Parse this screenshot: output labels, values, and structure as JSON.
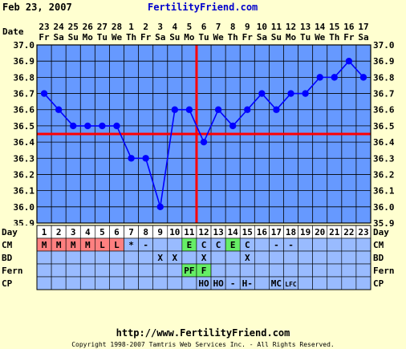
{
  "header": {
    "date": "Feb 23, 2007",
    "site": "FertilityFriend.com"
  },
  "footer": {
    "url": "http://www.FertilityFriend.com",
    "copyright": "Copyright 1998-2007 Tamtris Web Services Inc. - All Rights Reserved."
  },
  "colors": {
    "background": "#ffffd0",
    "plot_area": "#6699ff",
    "grid": "#000000",
    "line": "#0000ff",
    "coverline": "#ff0000",
    "table_bg": "#99bbff",
    "day_row_bg": "#ffffff",
    "cm_red": "#ff8080",
    "green": "#66ee66"
  },
  "chart_data": {
    "type": "line",
    "title": "",
    "xlabel": "Date",
    "ylabel": "",
    "x_dates": [
      "23",
      "24",
      "25",
      "26",
      "27",
      "28",
      "1",
      "2",
      "3",
      "4",
      "5",
      "6",
      "7",
      "8",
      "9",
      "10",
      "11",
      "12",
      "13",
      "14",
      "15",
      "16",
      "17"
    ],
    "x_weekdays": [
      "Fr",
      "Sa",
      "Su",
      "Mo",
      "Tu",
      "We",
      "Th",
      "Fr",
      "Sa",
      "Su",
      "Mo",
      "Tu",
      "We",
      "Th",
      "Fr",
      "Sa",
      "Su",
      "Mo",
      "Tu",
      "We",
      "Th",
      "Fr",
      "Sa"
    ],
    "days": [
      "1",
      "2",
      "3",
      "4",
      "5",
      "6",
      "7",
      "8",
      "9",
      "10",
      "11",
      "12",
      "13",
      "14",
      "15",
      "16",
      "17",
      "18",
      "19",
      "20",
      "21",
      "22",
      "23"
    ],
    "series": [
      {
        "values": [
          36.7,
          36.6,
          36.5,
          36.5,
          36.5,
          36.5,
          36.3,
          36.3,
          36.0,
          36.6,
          36.6,
          36.4,
          36.6,
          36.5,
          36.6,
          36.7,
          36.6,
          36.7,
          36.7,
          36.8,
          36.8,
          36.9,
          36.8
        ]
      }
    ],
    "ylim": [
      35.9,
      37.0
    ],
    "y_ticks": [
      "35.9",
      "36.0",
      "36.1",
      "36.2",
      "36.3",
      "36.4",
      "36.5",
      "36.6",
      "36.7",
      "36.8",
      "36.9",
      "37.0"
    ],
    "coverline": 36.45,
    "ovulation_day_index": 11,
    "grid": true
  },
  "rows": [
    {
      "label": "Day"
    },
    {
      "label": "CM",
      "cells": [
        "M",
        "M",
        "M",
        "M",
        "L",
        "L",
        "*",
        "-",
        "",
        "",
        "E",
        "C",
        "C",
        "E",
        "C",
        "",
        "-",
        "-",
        "",
        "",
        "",
        "",
        ""
      ],
      "colors": [
        "red",
        "red",
        "red",
        "red",
        "red",
        "red",
        "",
        "",
        "",
        "",
        "green",
        "",
        "",
        "green",
        "",
        "",
        "",
        "",
        "",
        "",
        "",
        "",
        ""
      ]
    },
    {
      "label": "BD",
      "cells": [
        "",
        "",
        "",
        "",
        "",
        "",
        "",
        "",
        "X",
        "X",
        "",
        "X",
        "",
        "",
        "X",
        "",
        "",
        "",
        "",
        "",
        "",
        "",
        ""
      ]
    },
    {
      "label": "Fern",
      "cells": [
        "",
        "",
        "",
        "",
        "",
        "",
        "",
        "",
        "",
        "",
        "PF",
        "F",
        "",
        "",
        "",
        "",
        "",
        "",
        "",
        "",
        "",
        "",
        ""
      ],
      "colors": [
        "",
        "",
        "",
        "",
        "",
        "",
        "",
        "",
        "",
        "",
        "green",
        "green",
        "",
        "",
        "",
        "",
        "",
        "",
        "",
        "",
        "",
        "",
        ""
      ]
    },
    {
      "label": "CP",
      "cells": [
        "",
        "",
        "",
        "",
        "",
        "",
        "",
        "",
        "",
        "",
        "",
        "HO",
        "HO",
        "-",
        "H-",
        "",
        "MC",
        "LFC",
        "",
        "",
        "",
        "",
        ""
      ]
    }
  ]
}
